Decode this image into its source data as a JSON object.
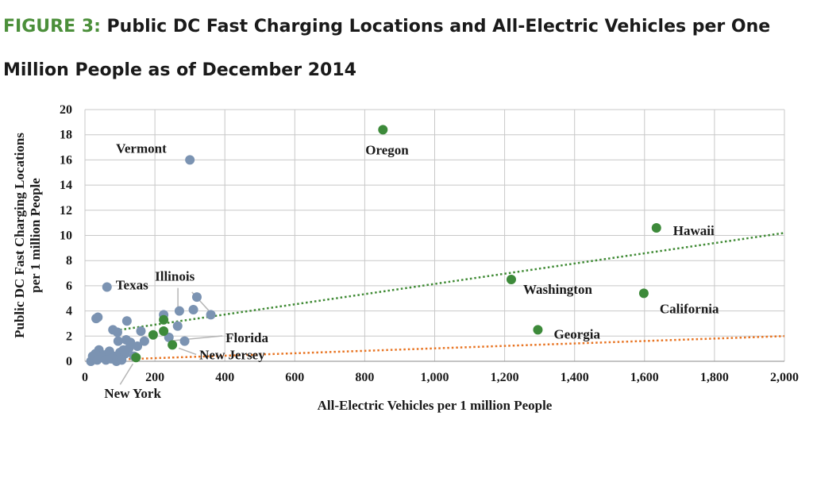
{
  "figure": {
    "label": "FIGURE 3:",
    "title": "Public DC Fast Charging Locations and All-Electric Vehicles per One Million People as of December 2014"
  },
  "colors": {
    "figure_label": "#4b8f3a",
    "state_point": "#7b93b2",
    "highlight_point": "#3d8a3a",
    "trend_green": "#3f8a34",
    "trend_orange": "#e87422",
    "grid": "#c8c8c8"
  },
  "chart_data": {
    "type": "scatter",
    "xlabel": "All-Electric Vehicles per 1 million People",
    "ylabel_lines": [
      "Public DC Fast Charging Locations",
      "per 1 million People"
    ],
    "xlim": [
      0,
      2000
    ],
    "ylim": [
      0,
      20
    ],
    "x_ticks": [
      0,
      200,
      400,
      600,
      800,
      1000,
      1200,
      1400,
      1600,
      1800,
      2000
    ],
    "x_tick_labels": [
      "0",
      "200",
      "400",
      "600",
      "800",
      "1,000",
      "1,200",
      "1,400",
      "1,600",
      "1,800",
      "2,000"
    ],
    "y_ticks": [
      0,
      2,
      4,
      6,
      8,
      10,
      12,
      14,
      16,
      18,
      20
    ],
    "y_tick_labels": [
      "0",
      "2",
      "4",
      "6",
      "8",
      "10",
      "12",
      "14",
      "16",
      "18",
      "20"
    ],
    "grid": true,
    "series": [
      {
        "points": [
          [
            300,
            16
          ],
          [
            63,
            5.9
          ],
          [
            37,
            3.5
          ],
          [
            32,
            3.4
          ],
          [
            320,
            5.1
          ],
          [
            270,
            4.0
          ],
          [
            310,
            4.1
          ],
          [
            360,
            3.7
          ],
          [
            225,
            3.7
          ],
          [
            120,
            3.2
          ],
          [
            265,
            2.8
          ],
          [
            80,
            2.5
          ],
          [
            93,
            2.3
          ],
          [
            160,
            2.4
          ],
          [
            240,
            1.9
          ],
          [
            118,
            1.7
          ],
          [
            95,
            1.6
          ],
          [
            130,
            1.5
          ],
          [
            170,
            1.6
          ],
          [
            285,
            1.6
          ],
          [
            40,
            0.9
          ],
          [
            55,
            0.5
          ],
          [
            70,
            0.8
          ],
          [
            82,
            0.4
          ],
          [
            100,
            0.7
          ],
          [
            115,
            0.6
          ],
          [
            125,
            1.0
          ],
          [
            150,
            1.2
          ],
          [
            22,
            0.4
          ],
          [
            25,
            0.2
          ],
          [
            30,
            0.6
          ],
          [
            45,
            0.3
          ],
          [
            60,
            0.1
          ],
          [
            75,
            0.2
          ],
          [
            90,
            0.0
          ],
          [
            105,
            0.1
          ],
          [
            17,
            0.0
          ],
          [
            35,
            0.1
          ],
          [
            140,
            0.4
          ],
          [
            110,
            0.9
          ]
        ]
      },
      {
        "points": [
          [
            852,
            18.4
          ],
          [
            1634,
            10.6
          ],
          [
            1219,
            6.5
          ],
          [
            1598,
            5.4
          ],
          [
            1295,
            2.5
          ],
          [
            225,
            3.3
          ],
          [
            225,
            2.4
          ],
          [
            195,
            2.1
          ],
          [
            250,
            1.3
          ],
          [
            146,
            0.3
          ]
        ]
      }
    ],
    "trendlines": [
      {
        "from": [
          100,
          2.5
        ],
        "to": [
          2000,
          10.2
        ]
      },
      {
        "from": [
          100,
          0.15
        ],
        "to": [
          2000,
          2.0
        ]
      }
    ],
    "annotations": [
      {
        "text": "Oregon",
        "at": [
          852,
          18.4
        ]
      },
      {
        "text": "Vermont",
        "at": [
          300,
          16
        ]
      },
      {
        "text": "Hawaii",
        "at": [
          1634,
          10.6
        ]
      },
      {
        "text": "Washington",
        "at": [
          1219,
          6.5
        ]
      },
      {
        "text": "California",
        "at": [
          1598,
          5.4
        ]
      },
      {
        "text": "Georgia",
        "at": [
          1295,
          2.5
        ]
      },
      {
        "text": "Texas",
        "at": [
          63,
          5.9
        ]
      },
      {
        "text": "Illinois",
        "at": [
          225,
          3.3
        ]
      },
      {
        "text": "Florida",
        "at": [
          225,
          2.4
        ]
      },
      {
        "text": "New Jersey",
        "at": [
          250,
          1.3
        ]
      },
      {
        "text": "New York",
        "at": [
          146,
          0.3
        ]
      }
    ]
  }
}
